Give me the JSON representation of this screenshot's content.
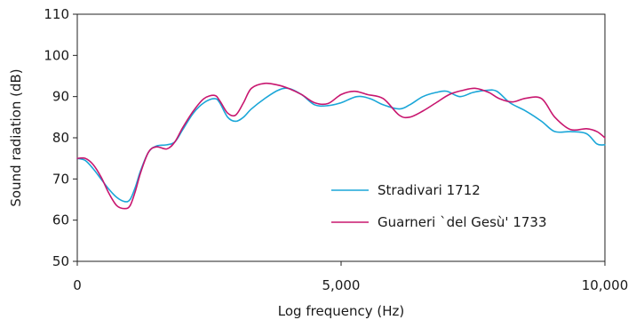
{
  "chart_data": {
    "type": "line",
    "xlabel": "Log frequency (Hz)",
    "ylabel": "Sound radiation (dB)",
    "xlim": [
      0,
      10000
    ],
    "ylim": [
      50,
      110
    ],
    "xticks": [
      0,
      5000,
      10000
    ],
    "xtick_labels": [
      "0",
      "5,000",
      "10,000"
    ],
    "yticks": [
      50,
      60,
      70,
      80,
      90,
      100,
      110
    ],
    "ytick_labels": [
      "50",
      "60",
      "70",
      "80",
      "90",
      "100",
      "110"
    ],
    "grid": false,
    "legend_position": "bottom-right",
    "series": [
      {
        "name": "Stradivari 1712",
        "color": "#1aa6d8",
        "x": [
          0,
          150,
          300,
          450,
          600,
          750,
          900,
          1000,
          1100,
          1200,
          1350,
          1500,
          1700,
          1850,
          2000,
          2200,
          2400,
          2600,
          2700,
          2850,
          3000,
          3150,
          3300,
          3550,
          3800,
          4000,
          4250,
          4500,
          4750,
          5000,
          5300,
          5550,
          5800,
          6100,
          6300,
          6550,
          6800,
          7000,
          7250,
          7500,
          7750,
          7950,
          8200,
          8500,
          8800,
          9050,
          9350,
          9650,
          9850,
          10000
        ],
        "y": [
          75,
          74.5,
          72.5,
          70,
          67.5,
          65.5,
          64.5,
          65,
          68,
          72,
          76.5,
          78,
          78.3,
          79,
          82,
          86,
          88.5,
          89.5,
          88.5,
          85,
          84,
          85,
          87,
          89.5,
          91.5,
          92,
          90.5,
          88,
          87.8,
          88.5,
          90,
          89.5,
          88,
          87,
          88,
          90,
          91,
          91.3,
          90,
          91,
          91.5,
          91.3,
          88.5,
          86.5,
          84,
          81.5,
          81.5,
          81,
          78.5,
          78.3
        ]
      },
      {
        "name": "Guarneri `del Gesù' 1733",
        "color": "#c8166f",
        "x": [
          0,
          150,
          300,
          450,
          600,
          750,
          900,
          1000,
          1100,
          1200,
          1350,
          1500,
          1700,
          1850,
          2000,
          2200,
          2400,
          2600,
          2700,
          2850,
          3000,
          3150,
          3300,
          3550,
          3800,
          4000,
          4250,
          4500,
          4750,
          5000,
          5250,
          5500,
          5800,
          6100,
          6300,
          6550,
          6800,
          7050,
          7300,
          7550,
          7800,
          8000,
          8250,
          8500,
          8800,
          9050,
          9350,
          9650,
          9850,
          10000
        ],
        "y": [
          75,
          75,
          73.5,
          70.5,
          66.5,
          63.5,
          62.8,
          63.5,
          67,
          71.5,
          76.5,
          77.8,
          77.3,
          79,
          82.5,
          86.5,
          89.5,
          90.3,
          89,
          86,
          85.5,
          88.5,
          92,
          93.2,
          92.8,
          92,
          90.5,
          88.5,
          88.3,
          90.5,
          91.3,
          90.5,
          89.5,
          85.5,
          85,
          86.5,
          88.5,
          90.5,
          91.5,
          92,
          91,
          89.5,
          88.7,
          89.6,
          89.5,
          85,
          82,
          82.2,
          81.5,
          80
        ]
      }
    ]
  }
}
